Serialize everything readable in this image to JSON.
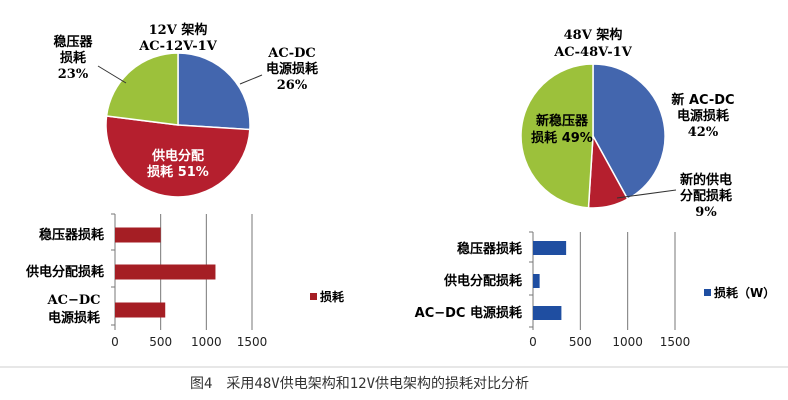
{
  "colors": {
    "blue": "#4366ae",
    "red": "#b51f2e",
    "green": "#9cc13b",
    "bar_red": "#a51e24",
    "bar_blue": "#1f4ea1",
    "grid": "#777777"
  },
  "caption": "图4　采用48V供电架构和12V供电架构的损耗对比分析",
  "chart_data": [
    {
      "type": "pie",
      "title": "12V 架构",
      "subtitle": "AC-12V-1V",
      "slices": [
        {
          "label_lines": [
            "AC-DC",
            "电源损耗"
          ],
          "value_label": "26%",
          "value": 26,
          "color": "#4366ae"
        },
        {
          "label_lines": [
            "供电分配"
          ],
          "value_label": "损耗 51%",
          "value": 51,
          "color": "#b51f2e"
        },
        {
          "label_lines": [
            "稳压器",
            "损耗"
          ],
          "value_label": "23%",
          "value": 23,
          "color": "#9cc13b"
        }
      ]
    },
    {
      "type": "pie",
      "title": "48V 架构",
      "subtitle": "AC-48V-1V",
      "slices": [
        {
          "label_lines": [
            "新 AC-DC",
            "电源损耗"
          ],
          "value_label": "42%",
          "value": 42,
          "color": "#4366ae"
        },
        {
          "label_lines": [
            "新的供电",
            "分配损耗"
          ],
          "value_label": "9%",
          "value": 9,
          "color": "#b51f2e"
        },
        {
          "label_lines": [
            "新稳压器"
          ],
          "value_label": "损耗 49%",
          "value": 49,
          "color": "#9cc13b"
        }
      ]
    },
    {
      "type": "bar",
      "orientation": "horizontal",
      "categories": [
        "稳压器损耗",
        "供电分配损耗",
        "AC−DC 电源损耗"
      ],
      "values": [
        500,
        1100,
        550
      ],
      "xlim": [
        0,
        1500
      ],
      "xticks": [
        0,
        500,
        1000,
        1500
      ],
      "grid": true,
      "legend": "损耗",
      "legend_position": "right",
      "color": "#a51e24"
    },
    {
      "type": "bar",
      "orientation": "horizontal",
      "categories": [
        "稳压器损耗",
        "供电分配损耗",
        "AC−DC 电源损耗"
      ],
      "values": [
        350,
        70,
        300
      ],
      "xlim": [
        0,
        1500
      ],
      "xticks": [
        0,
        500,
        1000,
        1500
      ],
      "grid": true,
      "legend": "损耗（W）",
      "legend_position": "right",
      "color": "#1f4ea1"
    }
  ]
}
